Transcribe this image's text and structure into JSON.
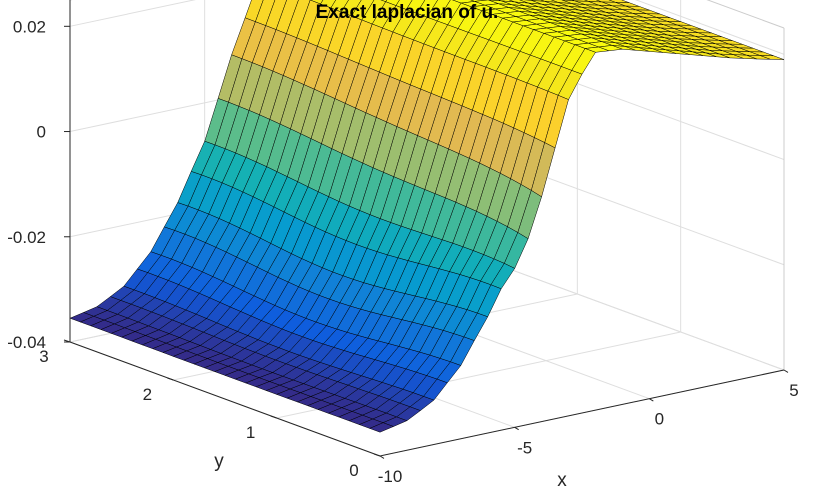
{
  "chart_data": {
    "type": "surface",
    "title": "Exact laplacian of u.",
    "xlabel": "x",
    "ylabel": "y",
    "zlabel": "",
    "xlim": [
      -10,
      5
    ],
    "ylim": [
      0,
      3
    ],
    "zlim": [
      -0.04,
      0.025
    ],
    "x_ticks": [
      -10,
      -5,
      0,
      5
    ],
    "y_ticks": [
      0,
      1,
      2,
      3
    ],
    "z_ticks": [
      -0.04,
      -0.02,
      0,
      0.02
    ],
    "x_tick_labels": [
      "-10",
      "-5",
      "0",
      "5"
    ],
    "y_tick_labels": [
      "0",
      "1",
      "2",
      "3"
    ],
    "z_tick_labels": [
      "-0.04",
      "-0.02",
      "0",
      "0.02"
    ],
    "grid": true,
    "box": true,
    "colormap": "parula",
    "edge_color": "#000000",
    "mesh_size": [
      31,
      31
    ],
    "surface_description": "Sigmoid-like ridge along x: about -0.035 at x=-10, rising to a maximum near 0.028 around x=-2, then decreasing to about 0.019 at x=5; slight dip near x=-4 for small y",
    "profile": {
      "x": [
        -10,
        -9,
        -8,
        -7,
        -6,
        -5,
        -4,
        -3,
        -2,
        -1,
        0,
        1,
        2,
        3,
        4,
        5
      ],
      "z": [
        -0.0355,
        -0.0345,
        -0.032,
        -0.027,
        -0.019,
        -0.008,
        0.008,
        0.021,
        0.028,
        0.0275,
        0.026,
        0.0245,
        0.023,
        0.0215,
        0.0202,
        0.019
      ]
    }
  }
}
